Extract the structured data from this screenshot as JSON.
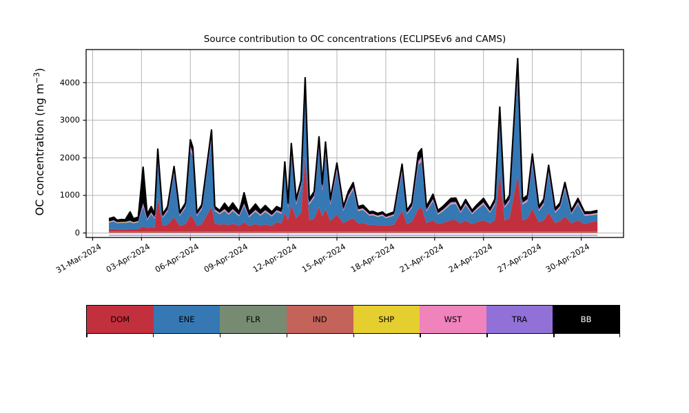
{
  "figure": {
    "title": "Source contribution to OC concentrations (ECLIPSEv6 and CAMS)",
    "ylabel": {
      "text": "OC concentration (ng m",
      "sup": "−3",
      "end": ")"
    }
  },
  "axes": {
    "x_ticks": [
      "31-Mar-2024",
      "03-Apr-2024",
      "06-Apr-2024",
      "09-Apr-2024",
      "12-Apr-2024",
      "15-Apr-2024",
      "18-Apr-2024",
      "21-Apr-2024",
      "24-Apr-2024",
      "27-Apr-2024",
      "30-Apr-2024"
    ],
    "x_tick_days": [
      -1,
      2,
      5,
      8,
      11,
      14,
      17,
      20,
      23,
      26,
      29
    ],
    "y_ticks": [
      "0",
      "1000",
      "2000",
      "3000",
      "4000"
    ],
    "y_tick_values": [
      0,
      1000,
      2000,
      3000,
      4000
    ],
    "grid": true,
    "grid_color": "#b3b3b3",
    "spine_color": "#000000"
  },
  "legend": {
    "entries": [
      {
        "label": "DOM",
        "color": "#c2303e",
        "text_color": "#000000"
      },
      {
        "label": "ENE",
        "color": "#3578b4",
        "text_color": "#000000"
      },
      {
        "label": "FLR",
        "color": "#778a72",
        "text_color": "#000000"
      },
      {
        "label": "IND",
        "color": "#c4635a",
        "text_color": "#000000"
      },
      {
        "label": "SHP",
        "color": "#e5ce30",
        "text_color": "#000000"
      },
      {
        "label": "WST",
        "color": "#f083bc",
        "text_color": "#000000"
      },
      {
        "label": "TRA",
        "color": "#9171d8",
        "text_color": "#000000"
      },
      {
        "label": "BB",
        "color": "#000000",
        "text_color": "#ffffff"
      }
    ]
  },
  "chart_data": {
    "type": "area",
    "stacked": true,
    "title": "Source contribution to OC concentrations (ECLIPSEv6 and CAMS)",
    "xlabel": "",
    "ylabel": "OC concentration (ng m−3)",
    "x_unit": "days since 2024-04-01 00:00 (hourly model output, 01-Apr-2024 to 01-May-2024)",
    "xlim": [
      -1.4,
      31.6
    ],
    "ylim": [
      -120,
      4880
    ],
    "grid": true,
    "legend_position": "bottom-row",
    "stack_order": [
      "IND",
      "DOM",
      "ENE",
      "FLR",
      "SHP",
      "WST",
      "TRA",
      "BB"
    ],
    "x": [
      0,
      0.3,
      0.5,
      0.8,
      1,
      1.3,
      1.5,
      1.8,
      2.1,
      2.35,
      2.6,
      2.8,
      3,
      3.3,
      3.6,
      4,
      4.35,
      4.7,
      5,
      5.15,
      5.4,
      5.7,
      6.3,
      6.5,
      6.8,
      7.1,
      7.35,
      7.6,
      8,
      8.3,
      8.6,
      9,
      9.3,
      9.6,
      10,
      10.3,
      10.6,
      10.8,
      11,
      11.2,
      11.5,
      11.8,
      12.05,
      12.3,
      12.6,
      12.9,
      13.1,
      13.3,
      13.6,
      14,
      14.4,
      14.7,
      15,
      15.3,
      15.6,
      16,
      16.2,
      16.5,
      16.8,
      17,
      17.5,
      18,
      18.3,
      18.6,
      19,
      19.2,
      19.5,
      19.9,
      20.2,
      20.5,
      21,
      21.3,
      21.6,
      21.9,
      22.3,
      22.6,
      23,
      23.4,
      23.7,
      24,
      24.3,
      24.6,
      25.1,
      25.4,
      25.7,
      26,
      26.4,
      26.7,
      27,
      27.4,
      27.7,
      28,
      28.4,
      28.8,
      29.2,
      29.6,
      30
    ],
    "total": [
      380,
      420,
      340,
      360,
      350,
      560,
      380,
      420,
      1750,
      500,
      700,
      500,
      2230,
      500,
      700,
      1770,
      550,
      800,
      2480,
      2280,
      550,
      750,
      2740,
      700,
      600,
      790,
      650,
      800,
      560,
      1070,
      560,
      770,
      600,
      730,
      560,
      700,
      640,
      1890,
      800,
      2380,
      900,
      1400,
      4130,
      900,
      1100,
      2560,
      1300,
      2420,
      900,
      1860,
      700,
      1100,
      1340,
      700,
      740,
      560,
      575,
      520,
      560,
      480,
      560,
      1830,
      600,
      800,
      2130,
      2240,
      700,
      1030,
      600,
      700,
      920,
      930,
      650,
      890,
      600,
      750,
      920,
      650,
      900,
      3350,
      800,
      1000,
      4640,
      900,
      1000,
      2100,
      700,
      900,
      1800,
      650,
      800,
      1345,
      600,
      920,
      560,
      560,
      600
    ],
    "series": [
      {
        "name": "DOM",
        "color": "#c2303e",
        "values": [
          60,
          70,
          60,
          60,
          55,
          70,
          60,
          65,
          140,
          90,
          120,
          100,
          890,
          150,
          180,
          380,
          150,
          200,
          420,
          380,
          150,
          200,
          650,
          220,
          180,
          200,
          170,
          210,
          150,
          250,
          150,
          200,
          160,
          190,
          150,
          250,
          220,
          500,
          300,
          700,
          350,
          500,
          1980,
          300,
          350,
          650,
          400,
          600,
          280,
          450,
          220,
          300,
          350,
          220,
          230,
          170,
          180,
          160,
          170,
          150,
          180,
          550,
          200,
          260,
          600,
          640,
          230,
          300,
          200,
          230,
          300,
          300,
          220,
          290,
          200,
          250,
          300,
          220,
          300,
          1530,
          300,
          350,
          1500,
          300,
          350,
          600,
          250,
          300,
          500,
          230,
          280,
          400,
          220,
          300,
          200,
          250,
          280
        ]
      },
      {
        "name": "ENE",
        "color": "#3578b4",
        "values": [
          179,
          197,
          161,
          170,
          175,
          181,
          159,
          182,
          527,
          214,
          345,
          244,
          1006,
          214,
          355,
          1156,
          261,
          430,
          1744,
          1603,
          261,
          392,
          1793,
          325,
          279,
          350,
          277,
          340,
          251,
          438,
          231,
          331,
          259,
          333,
          251,
          275,
          257,
          1131,
          330,
          1369,
          366,
          683,
          1730,
          416,
          547,
          1591,
          688,
          1517,
          436,
          1152,
          325,
          597,
          766,
          325,
          343,
          251,
          255,
          228,
          251,
          204,
          241,
          1014,
          259,
          370,
          1180,
          1225,
          305,
          510,
          249,
          305,
          425,
          434,
          277,
          416,
          259,
          332,
          425,
          277,
          416,
          1465,
          330,
          451,
          2697,
          416,
          451,
          1202,
          295,
          416,
          1035,
          267,
          350,
          721,
          239,
          435,
          221,
          181,
          179
        ]
      },
      {
        "name": "FLR",
        "color": "#778a72",
        "constant": 6
      },
      {
        "name": "IND",
        "color": "#c4635a",
        "constant": 38
      },
      {
        "name": "SHP",
        "color": "#e5ce30",
        "constant": 10
      },
      {
        "name": "WST",
        "color": "#f083bc",
        "fraction_of_total": 0.025
      },
      {
        "name": "TRA",
        "color": "#9171d8",
        "fraction_of_total": 0.02
      },
      {
        "name": "BB",
        "color": "#000000",
        "values": [
          70,
          80,
          50,
          60,
          50,
          230,
          90,
          100,
          950,
          120,
          150,
          80,
          180,
          60,
          80,
          100,
          60,
          80,
          150,
          140,
          60,
          70,
          120,
          70,
          60,
          150,
          120,
          160,
          80,
          280,
          100,
          150,
          100,
          120,
          80,
          90,
          80,
          120,
          80,
          150,
          90,
          100,
          180,
          90,
          100,
          150,
          100,
          140,
          90,
          120,
          70,
          100,
          110,
          70,
          80,
          60,
          60,
          55,
          60,
          50,
          60,
          130,
          60,
          80,
          200,
          220,
          80,
          120,
          70,
          80,
          100,
          100,
          70,
          90,
          60,
          80,
          100,
          70,
          90,
          150,
          80,
          100,
          180,
          90,
          100,
          150,
          70,
          90,
          130,
          70,
          80,
          110,
          60,
          90,
          60,
          50,
          60
        ]
      }
    ],
    "baseline_underline": {
      "name": "TRA-underline",
      "color": "#9171d8",
      "value": -60
    }
  }
}
